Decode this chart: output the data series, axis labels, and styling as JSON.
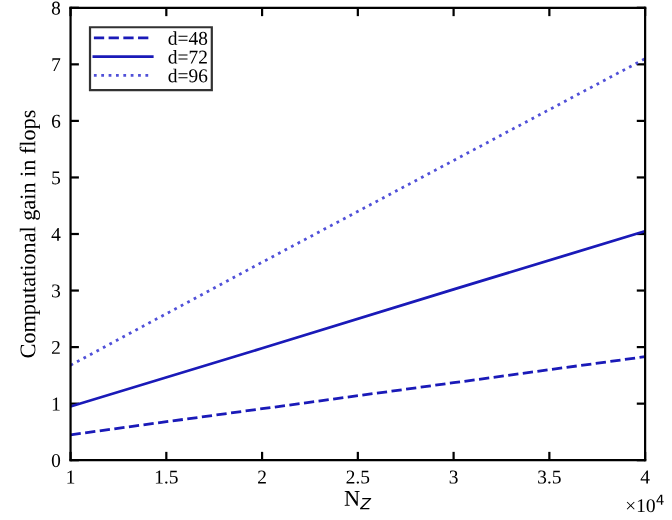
{
  "chart_data": {
    "type": "line",
    "xlabel": "N$_{Z}$",
    "ylabel": "Computational gain in flops",
    "x": [
      1,
      2,
      3,
      4
    ],
    "series": [
      {
        "name": "d=48",
        "color": "#1a1ab8",
        "line_style": "dashed",
        "values": [
          0.45,
          0.91,
          1.37,
          1.83
        ]
      },
      {
        "name": "d=72",
        "color": "#1a1ab8",
        "line_style": "solid",
        "values": [
          0.95,
          1.98,
          3.02,
          4.05
        ]
      },
      {
        "name": "d=96",
        "color": "#5050d8",
        "line_style": "dotted",
        "values": [
          1.68,
          3.5,
          5.3,
          7.1
        ]
      }
    ],
    "xlim": [
      1,
      4
    ],
    "xticks": [
      1,
      1.5,
      2,
      2.5,
      3,
      3.5,
      4
    ],
    "ylim": [
      0,
      8
    ],
    "yticks": [
      0,
      1,
      2,
      3,
      4,
      5,
      6,
      7,
      8
    ],
    "annotations": [
      "×10$^{4}$"
    ],
    "legend": "top left",
    "grid": false
  }
}
